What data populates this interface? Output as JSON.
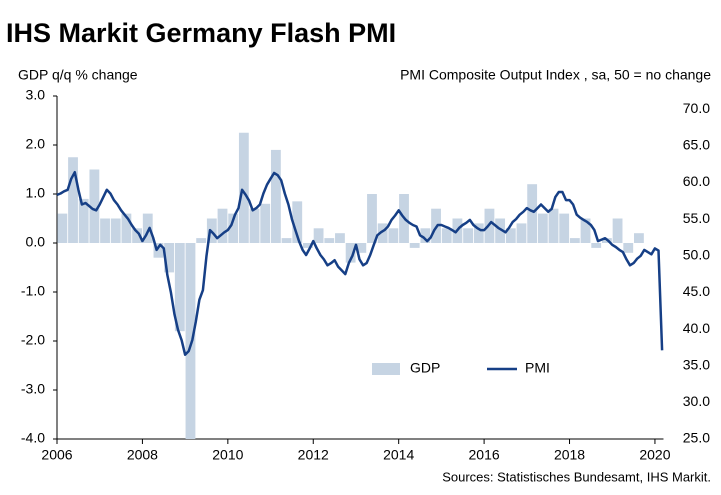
{
  "chart_data": {
    "type": "combo",
    "title": "IHS Markit Germany Flash PMI",
    "y_label": "GDP q/q % change",
    "y2_label": "PMI Composite Output Index , sa, 50 = no change",
    "source": "Sources: Statistisches Bundesamt, IHS Markit.",
    "xlim": [
      2006,
      2020.2
    ],
    "xticks": [
      2006,
      2008,
      2010,
      2012,
      2014,
      2016,
      2018,
      2020
    ],
    "ylim": [
      -4,
      3
    ],
    "yticks": [
      {
        "value": 3,
        "label": "3.0"
      },
      {
        "value": 2,
        "label": "2.0"
      },
      {
        "value": 1,
        "label": "1.0"
      },
      {
        "value": 0,
        "label": "0.0"
      },
      {
        "value": -1,
        "label": "-1.0"
      },
      {
        "value": -2,
        "label": "-2.0"
      },
      {
        "value": -3,
        "label": "-3.0"
      },
      {
        "value": -4,
        "label": "-4.0"
      }
    ],
    "y2lim": [
      25,
      71.8
    ],
    "y2ticks": [
      {
        "value": 70,
        "label": "70.0"
      },
      {
        "value": 65,
        "label": "65.0"
      },
      {
        "value": 60,
        "label": "60.0"
      },
      {
        "value": 55,
        "label": "55.0"
      },
      {
        "value": 50,
        "label": "50.0"
      },
      {
        "value": 45,
        "label": "45.0"
      },
      {
        "value": 40,
        "label": "40.0"
      },
      {
        "value": 35,
        "label": "35.0"
      },
      {
        "value": 30,
        "label": "30.0"
      },
      {
        "value": 25,
        "label": "25.0"
      }
    ],
    "series": [
      {
        "name": "GDP",
        "type": "bar",
        "axis": "y",
        "color": "#c6d4e3",
        "x": [
          2006.125,
          2006.375,
          2006.625,
          2006.875,
          2007.125,
          2007.375,
          2007.625,
          2007.875,
          2008.125,
          2008.375,
          2008.625,
          2008.875,
          2009.125,
          2009.375,
          2009.625,
          2009.875,
          2010.125,
          2010.375,
          2010.625,
          2010.875,
          2011.125,
          2011.375,
          2011.625,
          2011.875,
          2012.125,
          2012.375,
          2012.625,
          2012.875,
          2013.125,
          2013.375,
          2013.625,
          2013.875,
          2014.125,
          2014.375,
          2014.625,
          2014.875,
          2015.125,
          2015.375,
          2015.625,
          2015.875,
          2016.125,
          2016.375,
          2016.625,
          2016.875,
          2017.125,
          2017.375,
          2017.625,
          2017.875,
          2018.125,
          2018.375,
          2018.625,
          2018.875,
          2019.125,
          2019.375,
          2019.625,
          2019.875
        ],
        "values": [
          0.6,
          1.75,
          0.9,
          1.5,
          0.5,
          0.5,
          0.6,
          0.3,
          0.6,
          -0.3,
          -0.6,
          -1.8,
          -4.0,
          0.1,
          0.5,
          0.7,
          0.6,
          2.25,
          0.7,
          0.8,
          1.9,
          0.1,
          0.85,
          -0.1,
          0.3,
          0.1,
          0.2,
          -0.4,
          -0.2,
          1.0,
          0.4,
          0.3,
          1.0,
          -0.1,
          0.3,
          0.7,
          0.3,
          0.5,
          0.3,
          0.4,
          0.7,
          0.5,
          0.3,
          0.4,
          1.2,
          0.6,
          0.7,
          0.6,
          0.1,
          0.5,
          -0.1,
          0.1,
          0.5,
          -0.2,
          0.2,
          0.0
        ]
      },
      {
        "name": "PMI",
        "type": "line",
        "axis": "y2",
        "color": "#163f86",
        "x": [
          2006,
          2006.083,
          2006.167,
          2006.25,
          2006.333,
          2006.417,
          2006.5,
          2006.583,
          2006.667,
          2006.75,
          2006.833,
          2006.917,
          2007,
          2007.083,
          2007.167,
          2007.25,
          2007.333,
          2007.417,
          2007.5,
          2007.583,
          2007.667,
          2007.75,
          2007.833,
          2007.917,
          2008,
          2008.083,
          2008.167,
          2008.25,
          2008.333,
          2008.417,
          2008.5,
          2008.583,
          2008.667,
          2008.75,
          2008.833,
          2008.917,
          2009,
          2009.083,
          2009.167,
          2009.25,
          2009.333,
          2009.417,
          2009.5,
          2009.583,
          2009.667,
          2009.75,
          2009.833,
          2009.917,
          2010,
          2010.083,
          2010.167,
          2010.25,
          2010.333,
          2010.417,
          2010.5,
          2010.583,
          2010.667,
          2010.75,
          2010.833,
          2010.917,
          2011,
          2011.083,
          2011.167,
          2011.25,
          2011.333,
          2011.417,
          2011.5,
          2011.583,
          2011.667,
          2011.75,
          2011.833,
          2011.917,
          2012,
          2012.083,
          2012.167,
          2012.25,
          2012.333,
          2012.417,
          2012.5,
          2012.583,
          2012.667,
          2012.75,
          2012.833,
          2012.917,
          2013,
          2013.083,
          2013.167,
          2013.25,
          2013.333,
          2013.417,
          2013.5,
          2013.583,
          2013.667,
          2013.75,
          2013.833,
          2013.917,
          2014,
          2014.083,
          2014.167,
          2014.25,
          2014.333,
          2014.417,
          2014.5,
          2014.583,
          2014.667,
          2014.75,
          2014.833,
          2014.917,
          2015,
          2015.083,
          2015.167,
          2015.25,
          2015.333,
          2015.417,
          2015.5,
          2015.583,
          2015.667,
          2015.75,
          2015.833,
          2015.917,
          2016,
          2016.083,
          2016.167,
          2016.25,
          2016.333,
          2016.417,
          2016.5,
          2016.583,
          2016.667,
          2016.75,
          2016.833,
          2016.917,
          2017,
          2017.083,
          2017.167,
          2017.25,
          2017.333,
          2017.417,
          2017.5,
          2017.583,
          2017.667,
          2017.75,
          2017.833,
          2017.917,
          2018,
          2018.083,
          2018.167,
          2018.25,
          2018.333,
          2018.417,
          2018.5,
          2018.583,
          2018.667,
          2018.75,
          2018.833,
          2018.917,
          2019,
          2019.083,
          2019.167,
          2019.25,
          2019.333,
          2019.417,
          2019.5,
          2019.583,
          2019.667,
          2019.75,
          2019.833,
          2019.917,
          2020,
          2020.083,
          2020.167
        ],
        "values": [
          58.3,
          58.5,
          58.8,
          59.0,
          60.5,
          61.4,
          59.0,
          57.0,
          57.2,
          56.8,
          56.4,
          56.2,
          57.0,
          58.0,
          59.0,
          58.5,
          57.6,
          57.0,
          56.2,
          55.6,
          55.0,
          54.2,
          53.5,
          53.0,
          52.0,
          52.8,
          53.8,
          52.5,
          50.8,
          51.5,
          51.0,
          47.4,
          45.0,
          42.0,
          39.9,
          38.5,
          36.5,
          37.0,
          38.5,
          41.0,
          44.0,
          45.3,
          50.0,
          53.5,
          53.0,
          52.4,
          52.8,
          53.2,
          53.5,
          54.2,
          55.6,
          56.5,
          59.0,
          58.3,
          57.5,
          56.2,
          56.5,
          57.0,
          58.5,
          59.7,
          60.5,
          61.3,
          61.0,
          60.3,
          58.5,
          57.0,
          55.0,
          53.5,
          52.0,
          50.8,
          50.1,
          51.0,
          52.0,
          51.0,
          50.1,
          49.5,
          48.7,
          49.0,
          49.4,
          48.5,
          48.0,
          47.5,
          49.0,
          50.0,
          51.5,
          49.5,
          48.7,
          49.0,
          50.1,
          51.5,
          52.8,
          53.2,
          53.5,
          54.0,
          54.9,
          55.5,
          56.2,
          55.5,
          54.9,
          54.5,
          54.2,
          54.0,
          52.8,
          52.5,
          52.0,
          52.5,
          53.5,
          54.2,
          54.2,
          54.0,
          53.8,
          53.5,
          53.2,
          53.8,
          54.2,
          54.5,
          54.9,
          54.2,
          53.8,
          53.5,
          53.5,
          54.0,
          54.6,
          54.2,
          53.8,
          53.5,
          53.2,
          53.8,
          54.6,
          55.0,
          55.6,
          56.0,
          56.5,
          56.2,
          56.0,
          56.5,
          57.0,
          56.5,
          56.0,
          56.4,
          58.0,
          58.7,
          58.7,
          57.6,
          57.6,
          57.0,
          55.6,
          55.2,
          54.9,
          54.6,
          54.2,
          53.5,
          52.0,
          52.2,
          52.4,
          52.0,
          51.5,
          51.2,
          50.8,
          50.5,
          49.5,
          48.7,
          49.0,
          49.6,
          50.0,
          50.8,
          50.5,
          50.2,
          51.0,
          50.7,
          37.1
        ]
      }
    ]
  }
}
